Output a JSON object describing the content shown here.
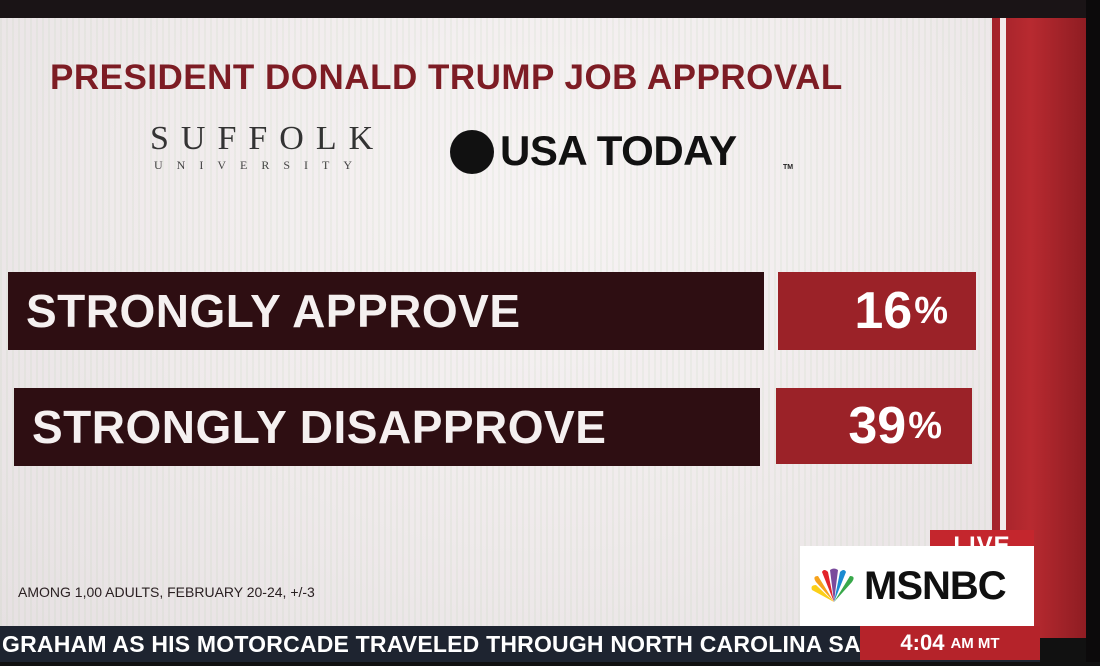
{
  "graphic": {
    "title": "PRESIDENT DONALD TRUMP JOB APPROVAL",
    "sponsor_1_main": "SUFFOLK",
    "sponsor_1_sub": "UNIVERSITY",
    "sponsor_2": "USA TODAY",
    "sponsor_2_tm": "TM",
    "rows": [
      {
        "label": "STRONGLY APPROVE",
        "value": "16",
        "unit": "%"
      },
      {
        "label": "STRONGLY DISAPPROVE",
        "value": "39",
        "unit": "%"
      }
    ],
    "footnote": "AMONG 1,00 ADULTS, FEBRUARY 20-24, +/-3"
  },
  "network": {
    "live_label": "LIVE",
    "name": "MSNBC",
    "logo_icon": "peacock-icon"
  },
  "ticker": {
    "text": "GRAHAM AS HIS MOTORCADE TRAVELED THROUGH NORTH CAROLINA SA",
    "time": "4:04",
    "zone": "AM MT"
  },
  "colors": {
    "title": "#7d1c24",
    "label_bg": "#2e0e12",
    "value_bg": "#9b2228",
    "live_bg": "#c4262d",
    "ticker_bg": "#1e2430"
  }
}
